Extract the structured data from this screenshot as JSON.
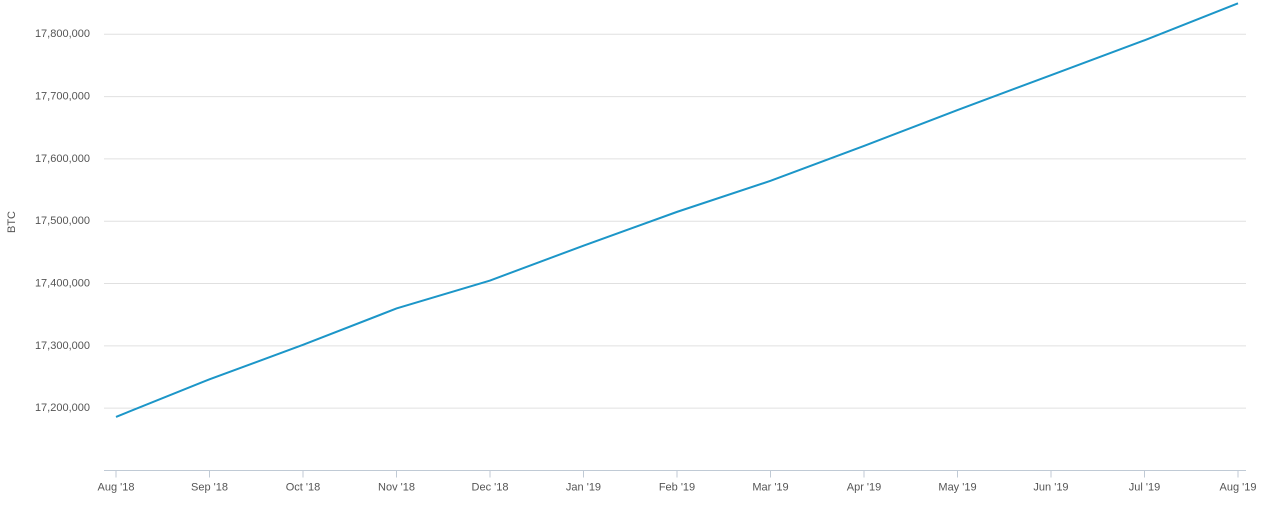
{
  "chart_data": {
    "type": "line",
    "y_label": "BTC",
    "categories": [
      "Aug '18",
      "Sep '18",
      "Oct '18",
      "Nov '18",
      "Dec '18",
      "Jan '19",
      "Feb '19",
      "Mar '19",
      "Apr '19",
      "May '19",
      "Jun '19",
      "Jul '19",
      "Aug '19"
    ],
    "series": [
      {
        "name": "BTC",
        "color": "#1c96c8",
        "values": [
          17186000,
          17246400,
          17301600,
          17360000,
          17404800,
          17460800,
          17515000,
          17564800,
          17620800,
          17678400,
          17734400,
          17790400,
          17849600
        ]
      }
    ],
    "ylim": [
      17100000,
      17855000
    ],
    "yticks": [
      {
        "value": 17200000,
        "label": "17,200,000"
      },
      {
        "value": 17300000,
        "label": "17,300,000"
      },
      {
        "value": 17400000,
        "label": "17,400,000"
      },
      {
        "value": 17500000,
        "label": "17,500,000"
      },
      {
        "value": 17600000,
        "label": "17,600,000"
      },
      {
        "value": 17700000,
        "label": "17,700,000"
      },
      {
        "value": 17800000,
        "label": "17,800,000"
      }
    ],
    "grid": true
  }
}
